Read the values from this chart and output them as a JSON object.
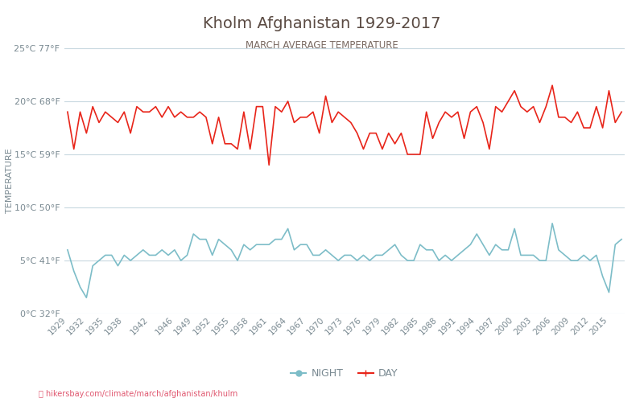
{
  "title": "Kholm Afghanistan 1929-2017",
  "subtitle": "MARCH AVERAGE TEMPERATURE",
  "ylabel": "TEMPERATURE",
  "xlabel_url": "hikersbay.com/climate/march/afghanistan/khulm",
  "ylim": [
    0,
    25
  ],
  "yticks_c": [
    0,
    5,
    10,
    15,
    20,
    25
  ],
  "yticks_f": [
    32,
    41,
    50,
    59,
    68,
    77
  ],
  "years": [
    1929,
    1930,
    1931,
    1932,
    1933,
    1934,
    1935,
    1936,
    1937,
    1938,
    1939,
    1940,
    1941,
    1942,
    1943,
    1944,
    1945,
    1946,
    1947,
    1948,
    1949,
    1950,
    1951,
    1952,
    1953,
    1954,
    1955,
    1956,
    1957,
    1958,
    1959,
    1960,
    1961,
    1962,
    1963,
    1964,
    1965,
    1966,
    1967,
    1968,
    1969,
    1970,
    1971,
    1972,
    1973,
    1974,
    1975,
    1976,
    1977,
    1978,
    1979,
    1980,
    1981,
    1982,
    1983,
    1984,
    1985,
    1986,
    1987,
    1988,
    1989,
    1990,
    1991,
    1992,
    1993,
    1994,
    1995,
    1996,
    1997,
    1998,
    1999,
    2000,
    2001,
    2002,
    2003,
    2004,
    2005,
    2006,
    2007,
    2008,
    2009,
    2010,
    2011,
    2012,
    2013,
    2014,
    2015,
    2016,
    2017
  ],
  "day_temps": [
    19.0,
    15.5,
    19.0,
    17.0,
    19.5,
    18.0,
    19.0,
    18.5,
    18.0,
    19.0,
    17.0,
    19.5,
    19.0,
    19.0,
    19.5,
    18.5,
    19.5,
    18.5,
    19.0,
    18.5,
    18.5,
    19.0,
    18.5,
    16.0,
    18.5,
    16.0,
    16.0,
    15.5,
    19.0,
    15.5,
    19.5,
    19.5,
    14.0,
    19.5,
    19.0,
    20.0,
    18.0,
    18.5,
    18.5,
    19.0,
    17.0,
    20.5,
    18.0,
    19.0,
    18.5,
    18.0,
    17.0,
    15.5,
    17.0,
    17.0,
    15.5,
    17.0,
    16.0,
    17.0,
    15.0,
    15.0,
    15.0,
    19.0,
    16.5,
    18.0,
    19.0,
    18.5,
    19.0,
    16.5,
    19.0,
    19.5,
    18.0,
    15.5,
    19.5,
    19.0,
    20.0,
    21.0,
    19.5,
    19.0,
    19.5,
    18.0,
    19.5,
    21.5,
    18.5,
    18.5,
    18.0,
    19.0,
    17.5,
    17.5,
    19.5,
    17.5,
    21.0,
    18.0,
    19.0
  ],
  "night_temps": [
    6.0,
    4.0,
    2.5,
    1.5,
    4.5,
    5.0,
    5.5,
    5.5,
    4.5,
    5.5,
    5.0,
    5.5,
    6.0,
    5.5,
    5.5,
    6.0,
    5.5,
    6.0,
    5.0,
    5.5,
    7.5,
    7.0,
    7.0,
    5.5,
    7.0,
    6.5,
    6.0,
    5.0,
    6.5,
    6.0,
    6.5,
    6.5,
    6.5,
    7.0,
    7.0,
    8.0,
    6.0,
    6.5,
    6.5,
    5.5,
    5.5,
    6.0,
    5.5,
    5.0,
    5.5,
    5.5,
    5.0,
    5.5,
    5.0,
    5.5,
    5.5,
    6.0,
    6.5,
    5.5,
    5.0,
    5.0,
    6.5,
    6.0,
    6.0,
    5.0,
    5.5,
    5.0,
    5.5,
    6.0,
    6.5,
    7.5,
    6.5,
    5.5,
    6.5,
    6.0,
    6.0,
    8.0,
    5.5,
    5.5,
    5.5,
    5.0,
    5.0,
    8.5,
    6.0,
    5.5,
    5.0,
    5.0,
    5.5,
    5.0,
    5.5,
    3.5,
    2.0,
    6.5,
    7.0
  ],
  "day_color": "#e8251a",
  "night_color": "#7dbdc8",
  "bg_color": "#ffffff",
  "grid_color": "#c8d8e0",
  "title_color": "#5a4a42",
  "subtitle_color": "#7a6a62",
  "tick_color": "#7a8a92",
  "ylabel_color": "#7a8a92",
  "url_color": "#e05870",
  "xtick_years": [
    1929,
    1932,
    1935,
    1938,
    1942,
    1946,
    1949,
    1952,
    1955,
    1958,
    1961,
    1964,
    1967,
    1970,
    1973,
    1976,
    1979,
    1982,
    1985,
    1988,
    1991,
    1994,
    1997,
    2000,
    2003,
    2006,
    2009,
    2012,
    2015
  ]
}
